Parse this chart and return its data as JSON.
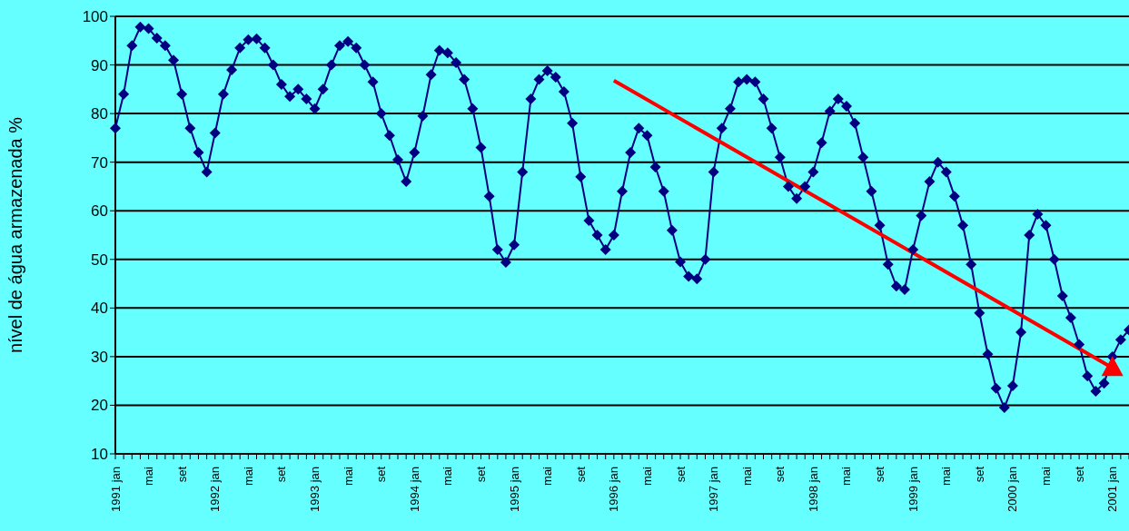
{
  "chart_data": {
    "type": "line",
    "ylabel": "nível de água armazenada %",
    "categories": [
      "1991 jan",
      null,
      null,
      null,
      "mai",
      null,
      null,
      null,
      "set",
      null,
      null,
      null,
      "1992 jan",
      null,
      null,
      null,
      "mai",
      null,
      null,
      null,
      "set",
      null,
      null,
      null,
      "1993 jan",
      null,
      null,
      null,
      "mai",
      null,
      null,
      null,
      "set",
      null,
      null,
      null,
      "1994 jan",
      null,
      null,
      null,
      "mai",
      null,
      null,
      null,
      "set",
      null,
      null,
      null,
      "1995 jan",
      null,
      null,
      null,
      "mai",
      null,
      null,
      null,
      "set",
      null,
      null,
      null,
      "1996 jan",
      null,
      null,
      null,
      "mai",
      null,
      null,
      null,
      "set",
      null,
      null,
      null,
      "1997 jan",
      null,
      null,
      null,
      "mai",
      null,
      null,
      null,
      "set",
      null,
      null,
      null,
      "1998 jan",
      null,
      null,
      null,
      "mai",
      null,
      null,
      null,
      "set",
      null,
      null,
      null,
      "1999 jan",
      null,
      null,
      null,
      "mai",
      null,
      null,
      null,
      "set",
      null,
      null,
      null,
      "2000 jan",
      null,
      null,
      null,
      "mai",
      null,
      null,
      null,
      "set",
      null,
      null,
      null,
      "2001 jan",
      null,
      null
    ],
    "series": [
      {
        "color": "#000080",
        "marker": "diamond",
        "values": [
          77,
          84,
          94,
          97.8,
          97.5,
          95.5,
          94,
          91,
          84,
          77,
          72,
          68,
          76,
          84,
          89,
          93.5,
          95.2,
          95.4,
          93.5,
          90,
          86,
          83.5,
          85,
          83,
          81,
          85,
          90,
          94,
          94.8,
          93.5,
          90,
          86.5,
          80,
          75.5,
          70.5,
          66,
          72,
          79.5,
          88,
          93,
          92.5,
          90.5,
          87,
          81,
          73,
          63,
          52,
          49.4,
          53,
          68,
          83,
          87,
          88.8,
          87.5,
          84.5,
          78,
          67,
          58,
          55,
          52,
          55,
          64,
          72,
          77,
          75.5,
          69,
          64,
          56,
          49.5,
          46.5,
          46,
          50,
          68,
          77,
          81,
          86.5,
          87,
          86.5,
          83,
          77,
          71,
          65,
          62.5,
          65,
          68,
          74,
          80.5,
          83,
          81.5,
          78,
          71,
          64,
          57,
          49,
          44.5,
          43.8,
          52,
          59,
          66,
          70,
          68,
          63,
          57,
          49,
          39,
          30.5,
          23.5,
          19.5,
          24,
          35,
          55,
          59.3,
          57,
          50,
          42.5,
          38,
          32.5,
          26,
          22.9,
          24.5,
          30,
          33.5,
          35.5
        ]
      },
      {
        "type": "line",
        "color": "#ff0000",
        "marker": "triangle",
        "values": [
          null,
          null,
          null,
          null,
          null,
          null,
          null,
          null,
          null,
          null,
          null,
          null,
          null,
          null,
          null,
          null,
          null,
          null,
          null,
          null,
          null,
          null,
          null,
          null,
          null,
          null,
          null,
          null,
          null,
          null,
          null,
          null,
          null,
          null,
          null,
          null,
          null,
          null,
          null,
          null,
          null,
          null,
          null,
          null,
          null,
          null,
          null,
          null,
          null,
          null,
          null,
          null,
          null,
          null,
          null,
          null,
          null,
          null,
          null,
          null,
          86.8,
          null,
          null,
          null,
          null,
          null,
          null,
          null,
          null,
          null,
          null,
          null,
          null,
          null,
          null,
          null,
          null,
          null,
          null,
          null,
          null,
          null,
          null,
          null,
          null,
          null,
          null,
          null,
          null,
          null,
          null,
          null,
          null,
          null,
          null,
          null,
          null,
          null,
          null,
          null,
          null,
          null,
          null,
          null,
          null,
          null,
          null,
          null,
          null,
          null,
          null,
          null,
          null,
          null,
          null,
          null,
          null,
          null,
          null,
          null,
          27.7,
          null,
          null
        ]
      }
    ],
    "ylim": [
      10,
      100
    ],
    "yticks": [
      10,
      20,
      30,
      40,
      50,
      60,
      70,
      80,
      90,
      100
    ],
    "grid": "y"
  }
}
